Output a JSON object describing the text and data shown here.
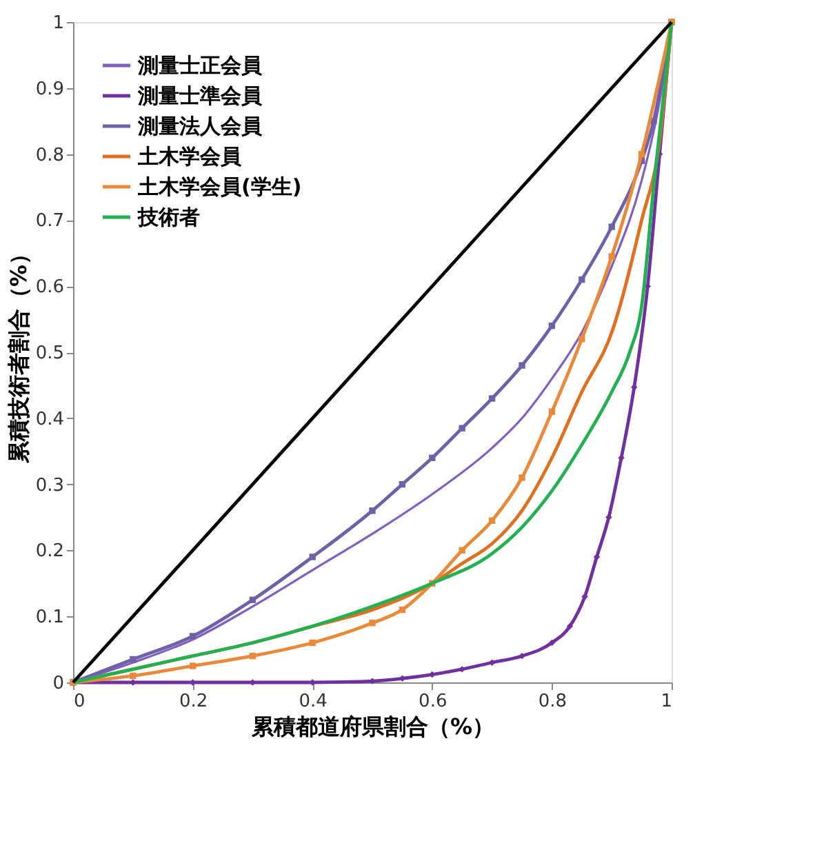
{
  "chart_data": {
    "type": "line",
    "xlabel": "累積都道府県割合（%）",
    "ylabel": "累積技術者割合（%）",
    "xlim": [
      0,
      1
    ],
    "ylim": [
      0,
      1
    ],
    "xticks": [
      0,
      0.2,
      0.4,
      0.6,
      0.8,
      1
    ],
    "yticks": [
      0,
      0.1,
      0.2,
      0.3,
      0.4,
      0.5,
      0.6,
      0.7,
      0.8,
      0.9,
      1
    ],
    "grid": false,
    "legend": "top left",
    "line_style": "solid",
    "series": [
      {
        "name": "測量士正会員",
        "color": "#7f5fc0",
        "marker": "none",
        "x": [
          0,
          0.1,
          0.2,
          0.3,
          0.4,
          0.5,
          0.6,
          0.7,
          0.75,
          0.8,
          0.85,
          0.9,
          0.95,
          0.98,
          1
        ],
        "values": [
          0,
          0.03,
          0.065,
          0.115,
          0.17,
          0.225,
          0.285,
          0.355,
          0.4,
          0.46,
          0.53,
          0.63,
          0.76,
          0.88,
          1
        ]
      },
      {
        "name": "測量士準会員",
        "color": "#7030a0",
        "marker": "diamond",
        "x": [
          0,
          0.1,
          0.2,
          0.3,
          0.4,
          0.5,
          0.55,
          0.6,
          0.65,
          0.7,
          0.75,
          0.8,
          0.83,
          0.855,
          0.875,
          0.895,
          0.916,
          0.9375,
          0.96,
          0.98,
          1
        ],
        "values": [
          0,
          0,
          0,
          0,
          0,
          0.002,
          0.006,
          0.012,
          0.02,
          0.03,
          0.04,
          0.06,
          0.085,
          0.13,
          0.19,
          0.25,
          0.34,
          0.447,
          0.6,
          0.8,
          1
        ]
      },
      {
        "name": "測量法人会員",
        "color": "#7060a8",
        "marker": "square",
        "x": [
          0,
          0.1,
          0.2,
          0.3,
          0.4,
          0.5,
          0.55,
          0.6,
          0.65,
          0.7,
          0.75,
          0.8,
          0.85,
          0.9,
          0.95,
          0.97,
          1
        ],
        "values": [
          0,
          0.035,
          0.07,
          0.125,
          0.19,
          0.26,
          0.3,
          0.34,
          0.385,
          0.43,
          0.48,
          0.54,
          0.61,
          0.69,
          0.79,
          0.85,
          1
        ]
      },
      {
        "name": "土木学会員",
        "color": "#e07020",
        "marker": "none",
        "x": [
          0,
          0.1,
          0.2,
          0.3,
          0.4,
          0.5,
          0.6,
          0.65,
          0.7,
          0.75,
          0.8,
          0.85,
          0.9,
          0.95,
          0.98,
          1
        ],
        "values": [
          0,
          0.02,
          0.04,
          0.06,
          0.085,
          0.11,
          0.15,
          0.18,
          0.21,
          0.26,
          0.34,
          0.44,
          0.53,
          0.7,
          0.82,
          1
        ]
      },
      {
        "name": "土木学会員(学生)",
        "color": "#e88a3a",
        "marker": "square",
        "x": [
          0,
          0.1,
          0.2,
          0.3,
          0.4,
          0.5,
          0.55,
          0.6,
          0.65,
          0.7,
          0.75,
          0.8,
          0.85,
          0.9,
          0.95,
          1
        ],
        "values": [
          0,
          0.01,
          0.025,
          0.04,
          0.06,
          0.09,
          0.11,
          0.15,
          0.2,
          0.245,
          0.31,
          0.41,
          0.52,
          0.645,
          0.8,
          1
        ]
      },
      {
        "name": "技術者",
        "color": "#22b050",
        "marker": "none",
        "x": [
          0,
          0.1,
          0.2,
          0.3,
          0.4,
          0.5,
          0.6,
          0.7,
          0.75,
          0.8,
          0.85,
          0.9,
          0.93,
          0.95,
          0.97,
          1
        ],
        "values": [
          0,
          0.02,
          0.04,
          0.06,
          0.085,
          0.115,
          0.15,
          0.195,
          0.235,
          0.29,
          0.36,
          0.44,
          0.5,
          0.57,
          0.75,
          1
        ]
      },
      {
        "color": "#000000",
        "marker": "none",
        "x": [
          0,
          1
        ],
        "values": [
          0,
          1
        ]
      }
    ]
  }
}
